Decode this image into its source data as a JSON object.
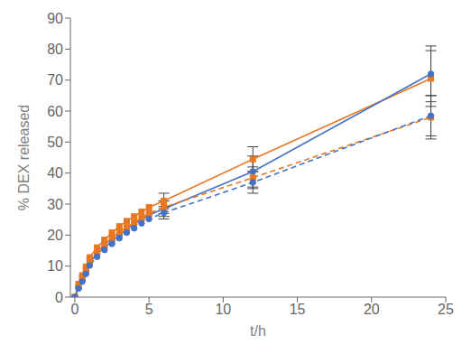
{
  "chart_data": {
    "type": "line",
    "xlabel": "t/h",
    "ylabel": "% DEX released",
    "xlim": [
      -0.3,
      25
    ],
    "ylim": [
      0,
      90
    ],
    "xticks": [
      0,
      5,
      10,
      15,
      20,
      25
    ],
    "yticks": [
      0,
      10,
      20,
      30,
      40,
      50,
      60,
      70,
      80,
      90
    ],
    "grid": false,
    "x": [
      0,
      0.25,
      0.5,
      0.75,
      1.0,
      1.5,
      2.0,
      2.5,
      3.0,
      3.5,
      4.0,
      4.5,
      5.0,
      6.0,
      12.0,
      24.0
    ],
    "series": [
      {
        "color": "#E87722",
        "line_style": "solid",
        "marker": "square",
        "values": [
          0,
          4.2,
          7.0,
          9.8,
          12.8,
          16.0,
          18.5,
          20.8,
          22.8,
          24.5,
          26.0,
          27.5,
          29.0,
          31.0,
          44.5,
          70.5
        ],
        "yerr": [
          0,
          0,
          0,
          0,
          0,
          0,
          0,
          0,
          0,
          0,
          0,
          0,
          0,
          2.5,
          4.0,
          9.0
        ]
      },
      {
        "color": "#4472C4",
        "line_style": "solid",
        "marker": "circle",
        "values": [
          0,
          3.0,
          5.5,
          8.2,
          11.0,
          14.0,
          16.0,
          18.0,
          20.0,
          21.8,
          23.5,
          25.0,
          26.5,
          28.5,
          40.5,
          72.0
        ],
        "yerr": [
          0,
          0,
          0,
          0,
          0,
          0,
          0,
          0,
          0,
          0,
          0,
          0,
          0,
          2.5,
          5.0,
          9.0
        ]
      },
      {
        "color": "#E87722",
        "line_style": "dashed",
        "marker": "square",
        "values": [
          0,
          3.5,
          6.2,
          8.8,
          11.5,
          14.5,
          17.0,
          19.0,
          21.0,
          22.5,
          24.0,
          25.5,
          27.0,
          29.0,
          38.5,
          58.0
        ],
        "yerr": [
          0,
          0,
          0,
          0,
          0,
          0,
          0,
          0,
          0,
          0,
          0,
          0,
          0,
          2.0,
          3.5,
          7.0
        ]
      },
      {
        "color": "#4472C4",
        "line_style": "dashed",
        "marker": "circle",
        "values": [
          0,
          2.8,
          5.0,
          7.5,
          10.2,
          13.0,
          15.2,
          17.2,
          19.0,
          20.8,
          22.2,
          23.8,
          25.2,
          27.2,
          37.0,
          58.5
        ],
        "yerr": [
          0,
          0,
          0,
          0,
          0,
          0,
          0,
          0,
          0,
          0,
          0,
          0,
          0,
          2.0,
          3.5,
          6.5
        ]
      }
    ]
  }
}
